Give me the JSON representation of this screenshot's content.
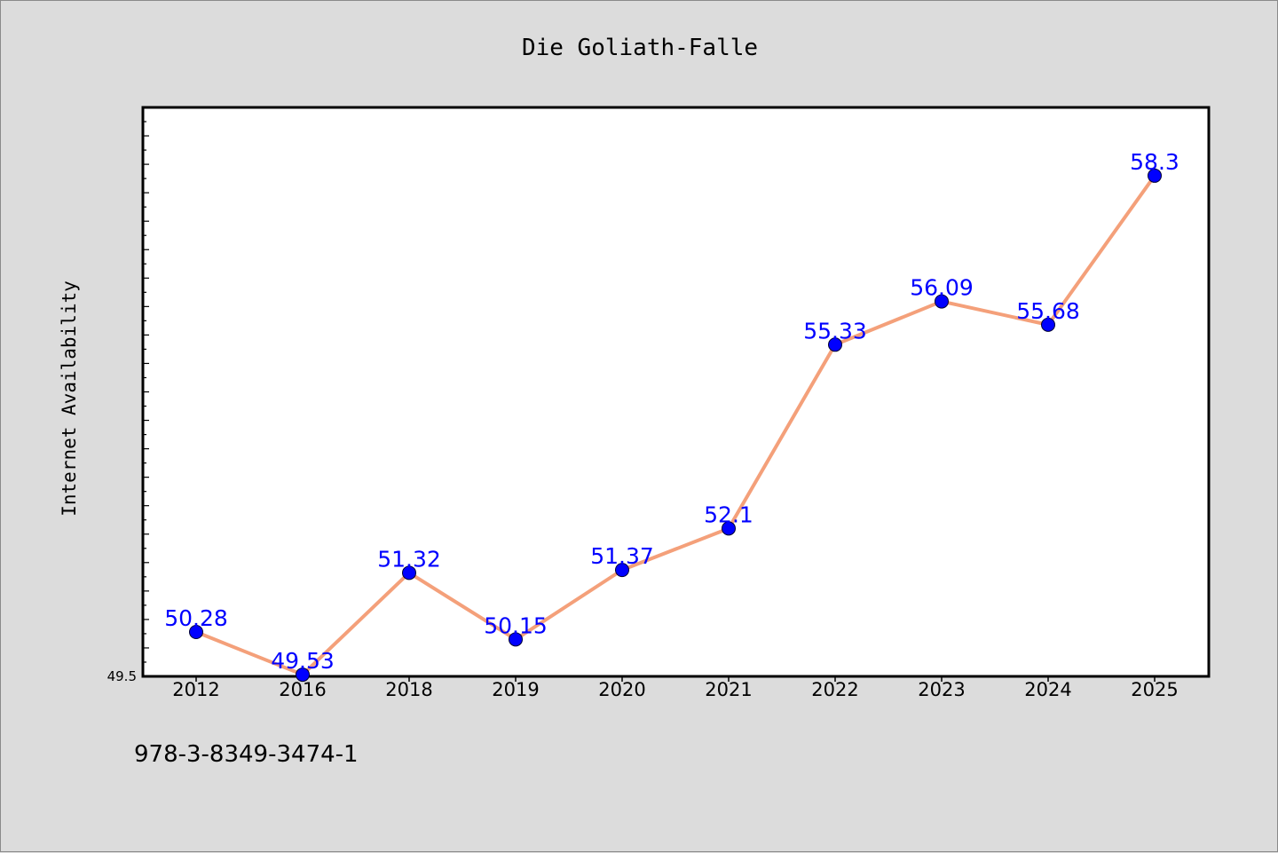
{
  "chart_data": {
    "type": "line",
    "title": "Die Goliath-Falle",
    "xlabel": "",
    "ylabel": "Internet Availability",
    "categories": [
      "2012",
      "2016",
      "2018",
      "2019",
      "2020",
      "2021",
      "2022",
      "2023",
      "2024",
      "2025"
    ],
    "series": [
      {
        "values": [
          50.28,
          49.53,
          51.32,
          50.15,
          51.37,
          52.1,
          55.33,
          56.09,
          55.68,
          58.3
        ]
      }
    ],
    "data_labels": [
      "50.28",
      "49.53",
      "51.32",
      "50.15",
      "51.37",
      "52.1",
      "55.33",
      "56.09",
      "55.68",
      "58.3"
    ],
    "ylim": [
      49.5,
      59.5
    ],
    "y_tick_labels": [
      "49.5"
    ],
    "grid": false,
    "colors": {
      "line": "#f4a07a",
      "marker": "#0000ff",
      "label": "#0000ff",
      "background": "#dcdcdc",
      "plot_background": "#ffffff"
    }
  },
  "footnote": "978-3-8349-3474-1"
}
